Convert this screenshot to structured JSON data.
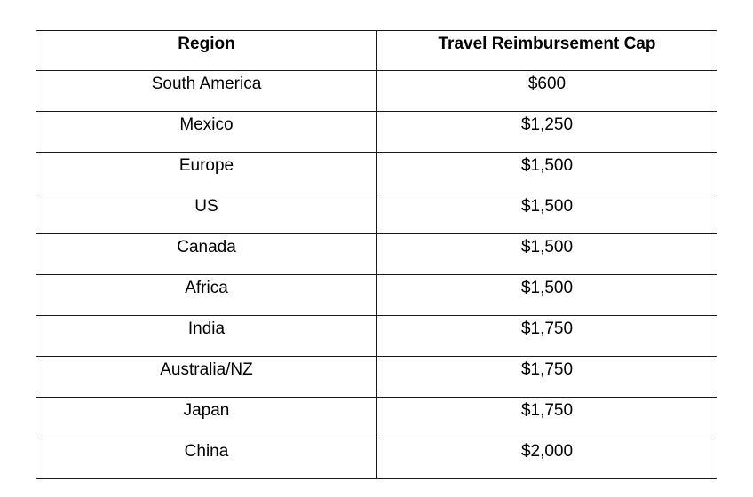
{
  "table": {
    "headers": {
      "region": "Region",
      "cap": "Travel Reimbursement Cap"
    },
    "rows": [
      {
        "region": "South America",
        "cap": "$600"
      },
      {
        "region": "Mexico",
        "cap": "$1,250"
      },
      {
        "region": "Europe",
        "cap": "$1,500"
      },
      {
        "region": "US",
        "cap": "$1,500"
      },
      {
        "region": "Canada",
        "cap": "$1,500"
      },
      {
        "region": "Africa",
        "cap": "$1,500"
      },
      {
        "region": "India",
        "cap": "$1,750"
      },
      {
        "region": "Australia/NZ",
        "cap": "$1,750"
      },
      {
        "region": "Japan",
        "cap": "$1,750"
      },
      {
        "region": "China",
        "cap": "$2,000"
      }
    ]
  }
}
